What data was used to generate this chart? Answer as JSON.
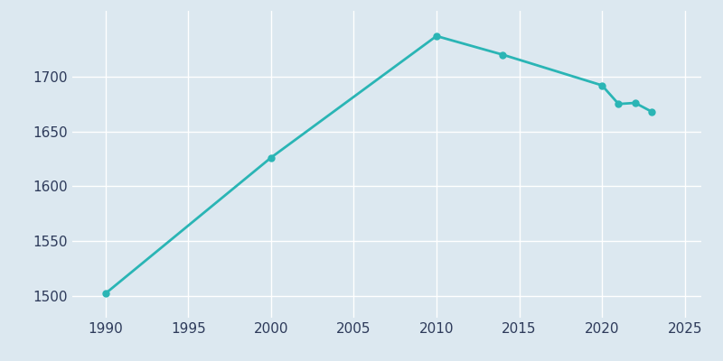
{
  "years": [
    1990,
    2000,
    2010,
    2014,
    2020,
    2021,
    2022,
    2023
  ],
  "population": [
    1502,
    1626,
    1737,
    1720,
    1692,
    1675,
    1676,
    1668
  ],
  "line_color": "#2ab5b5",
  "bg_color": "#dce8f0",
  "grid_color": "#ffffff",
  "text_color": "#2d3a5a",
  "xlim": [
    1988,
    2026
  ],
  "ylim": [
    1480,
    1760
  ],
  "xticks": [
    1990,
    1995,
    2000,
    2005,
    2010,
    2015,
    2020,
    2025
  ],
  "yticks": [
    1500,
    1550,
    1600,
    1650,
    1700
  ],
  "linewidth": 2.0,
  "markersize": 5.0
}
